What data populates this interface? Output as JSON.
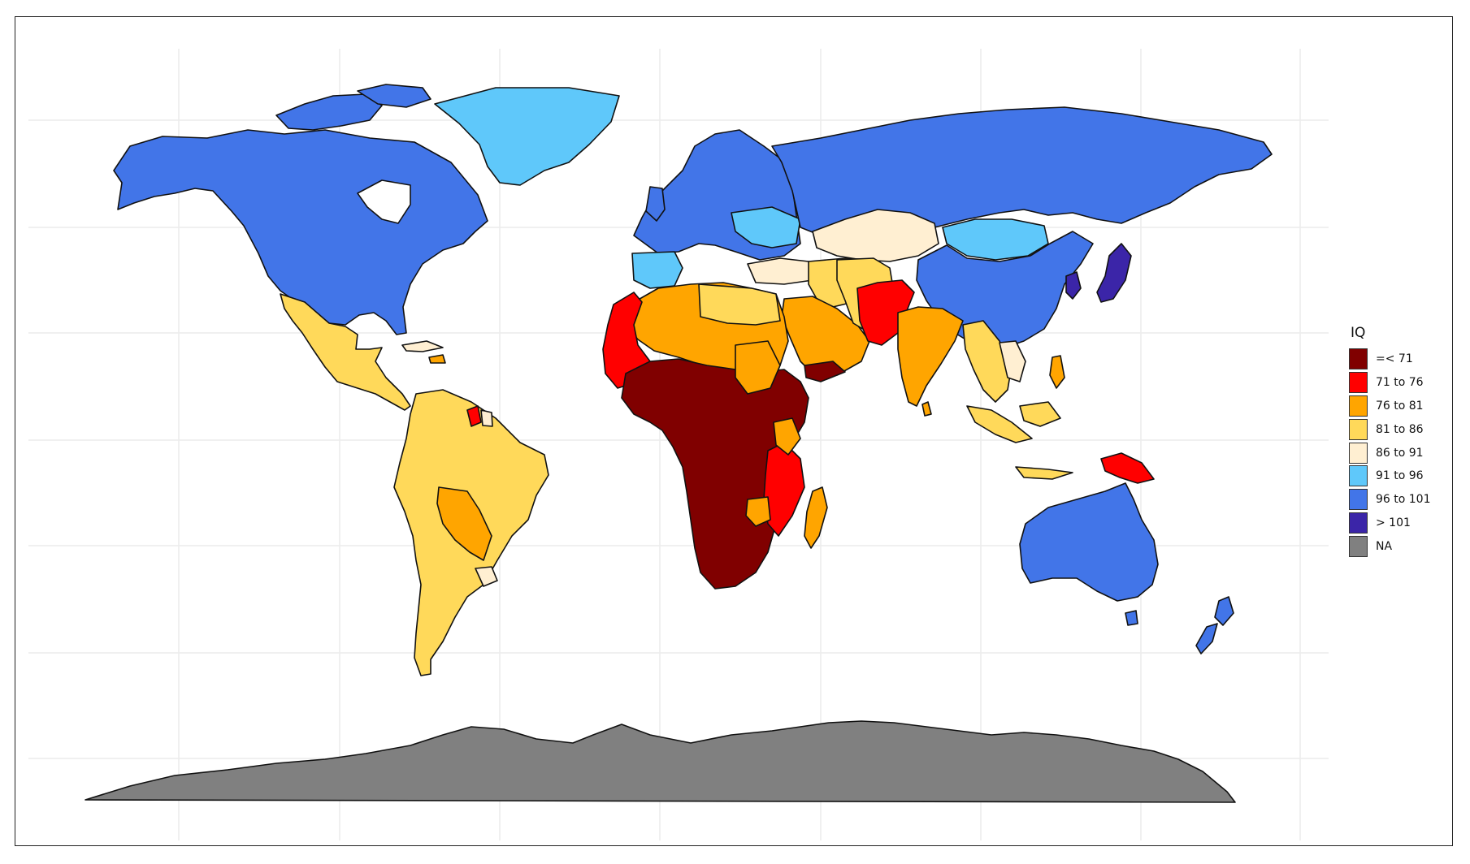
{
  "legend": {
    "title": "IQ",
    "items": [
      {
        "label": "=< 71",
        "color": "#800000"
      },
      {
        "label": "71 to 76",
        "color": "#ff0000"
      },
      {
        "label": "76 to 81",
        "color": "#ffa500"
      },
      {
        "label": "81 to 86",
        "color": "#ffd95a"
      },
      {
        "label": "86 to 91",
        "color": "#ffefd2"
      },
      {
        "label": "91 to 96",
        "color": "#5fc8fa"
      },
      {
        "label": "96 to 101",
        "color": "#4275e8"
      },
      {
        "label": "> 101",
        "color": "#3b25a8"
      },
      {
        "label": "NA",
        "color": "#808080"
      }
    ]
  },
  "regions": [
    {
      "name": "north-america",
      "category": "96 to 101"
    },
    {
      "name": "greenland",
      "category": "91 to 96"
    },
    {
      "name": "mexico-central-america",
      "category": "81 to 86"
    },
    {
      "name": "south-america",
      "category": "81 to 86"
    },
    {
      "name": "bolivia-paraguay",
      "category": "76 to 81"
    },
    {
      "name": "europe",
      "category": "96 to 101"
    },
    {
      "name": "russia",
      "category": "96 to 101"
    },
    {
      "name": "iberia",
      "category": "91 to 96"
    },
    {
      "name": "china",
      "category": "96 to 101"
    },
    {
      "name": "mongolia",
      "category": "91 to 96"
    },
    {
      "name": "kazakhstan",
      "category": "86 to 91"
    },
    {
      "name": "japan-korea",
      "category": "> 101"
    },
    {
      "name": "middle-east",
      "category": "81 to 86"
    },
    {
      "name": "arabia",
      "category": "76 to 81"
    },
    {
      "name": "afghanistan-pakistan",
      "category": "71 to 76"
    },
    {
      "name": "india",
      "category": "76 to 81"
    },
    {
      "name": "southeast-asia",
      "category": "81 to 86"
    },
    {
      "name": "north-africa",
      "category": "76 to 81"
    },
    {
      "name": "west-africa",
      "category": "71 to 76"
    },
    {
      "name": "central-africa",
      "category": "=< 71"
    },
    {
      "name": "east-africa",
      "category": "71 to 76"
    },
    {
      "name": "madagascar",
      "category": "76 to 81"
    },
    {
      "name": "australia",
      "category": "96 to 101"
    },
    {
      "name": "new-zealand",
      "category": "96 to 101"
    },
    {
      "name": "papua-new-guinea",
      "category": "71 to 76"
    },
    {
      "name": "indonesia",
      "category": "81 to 86"
    },
    {
      "name": "antarctica",
      "category": "NA"
    }
  ]
}
